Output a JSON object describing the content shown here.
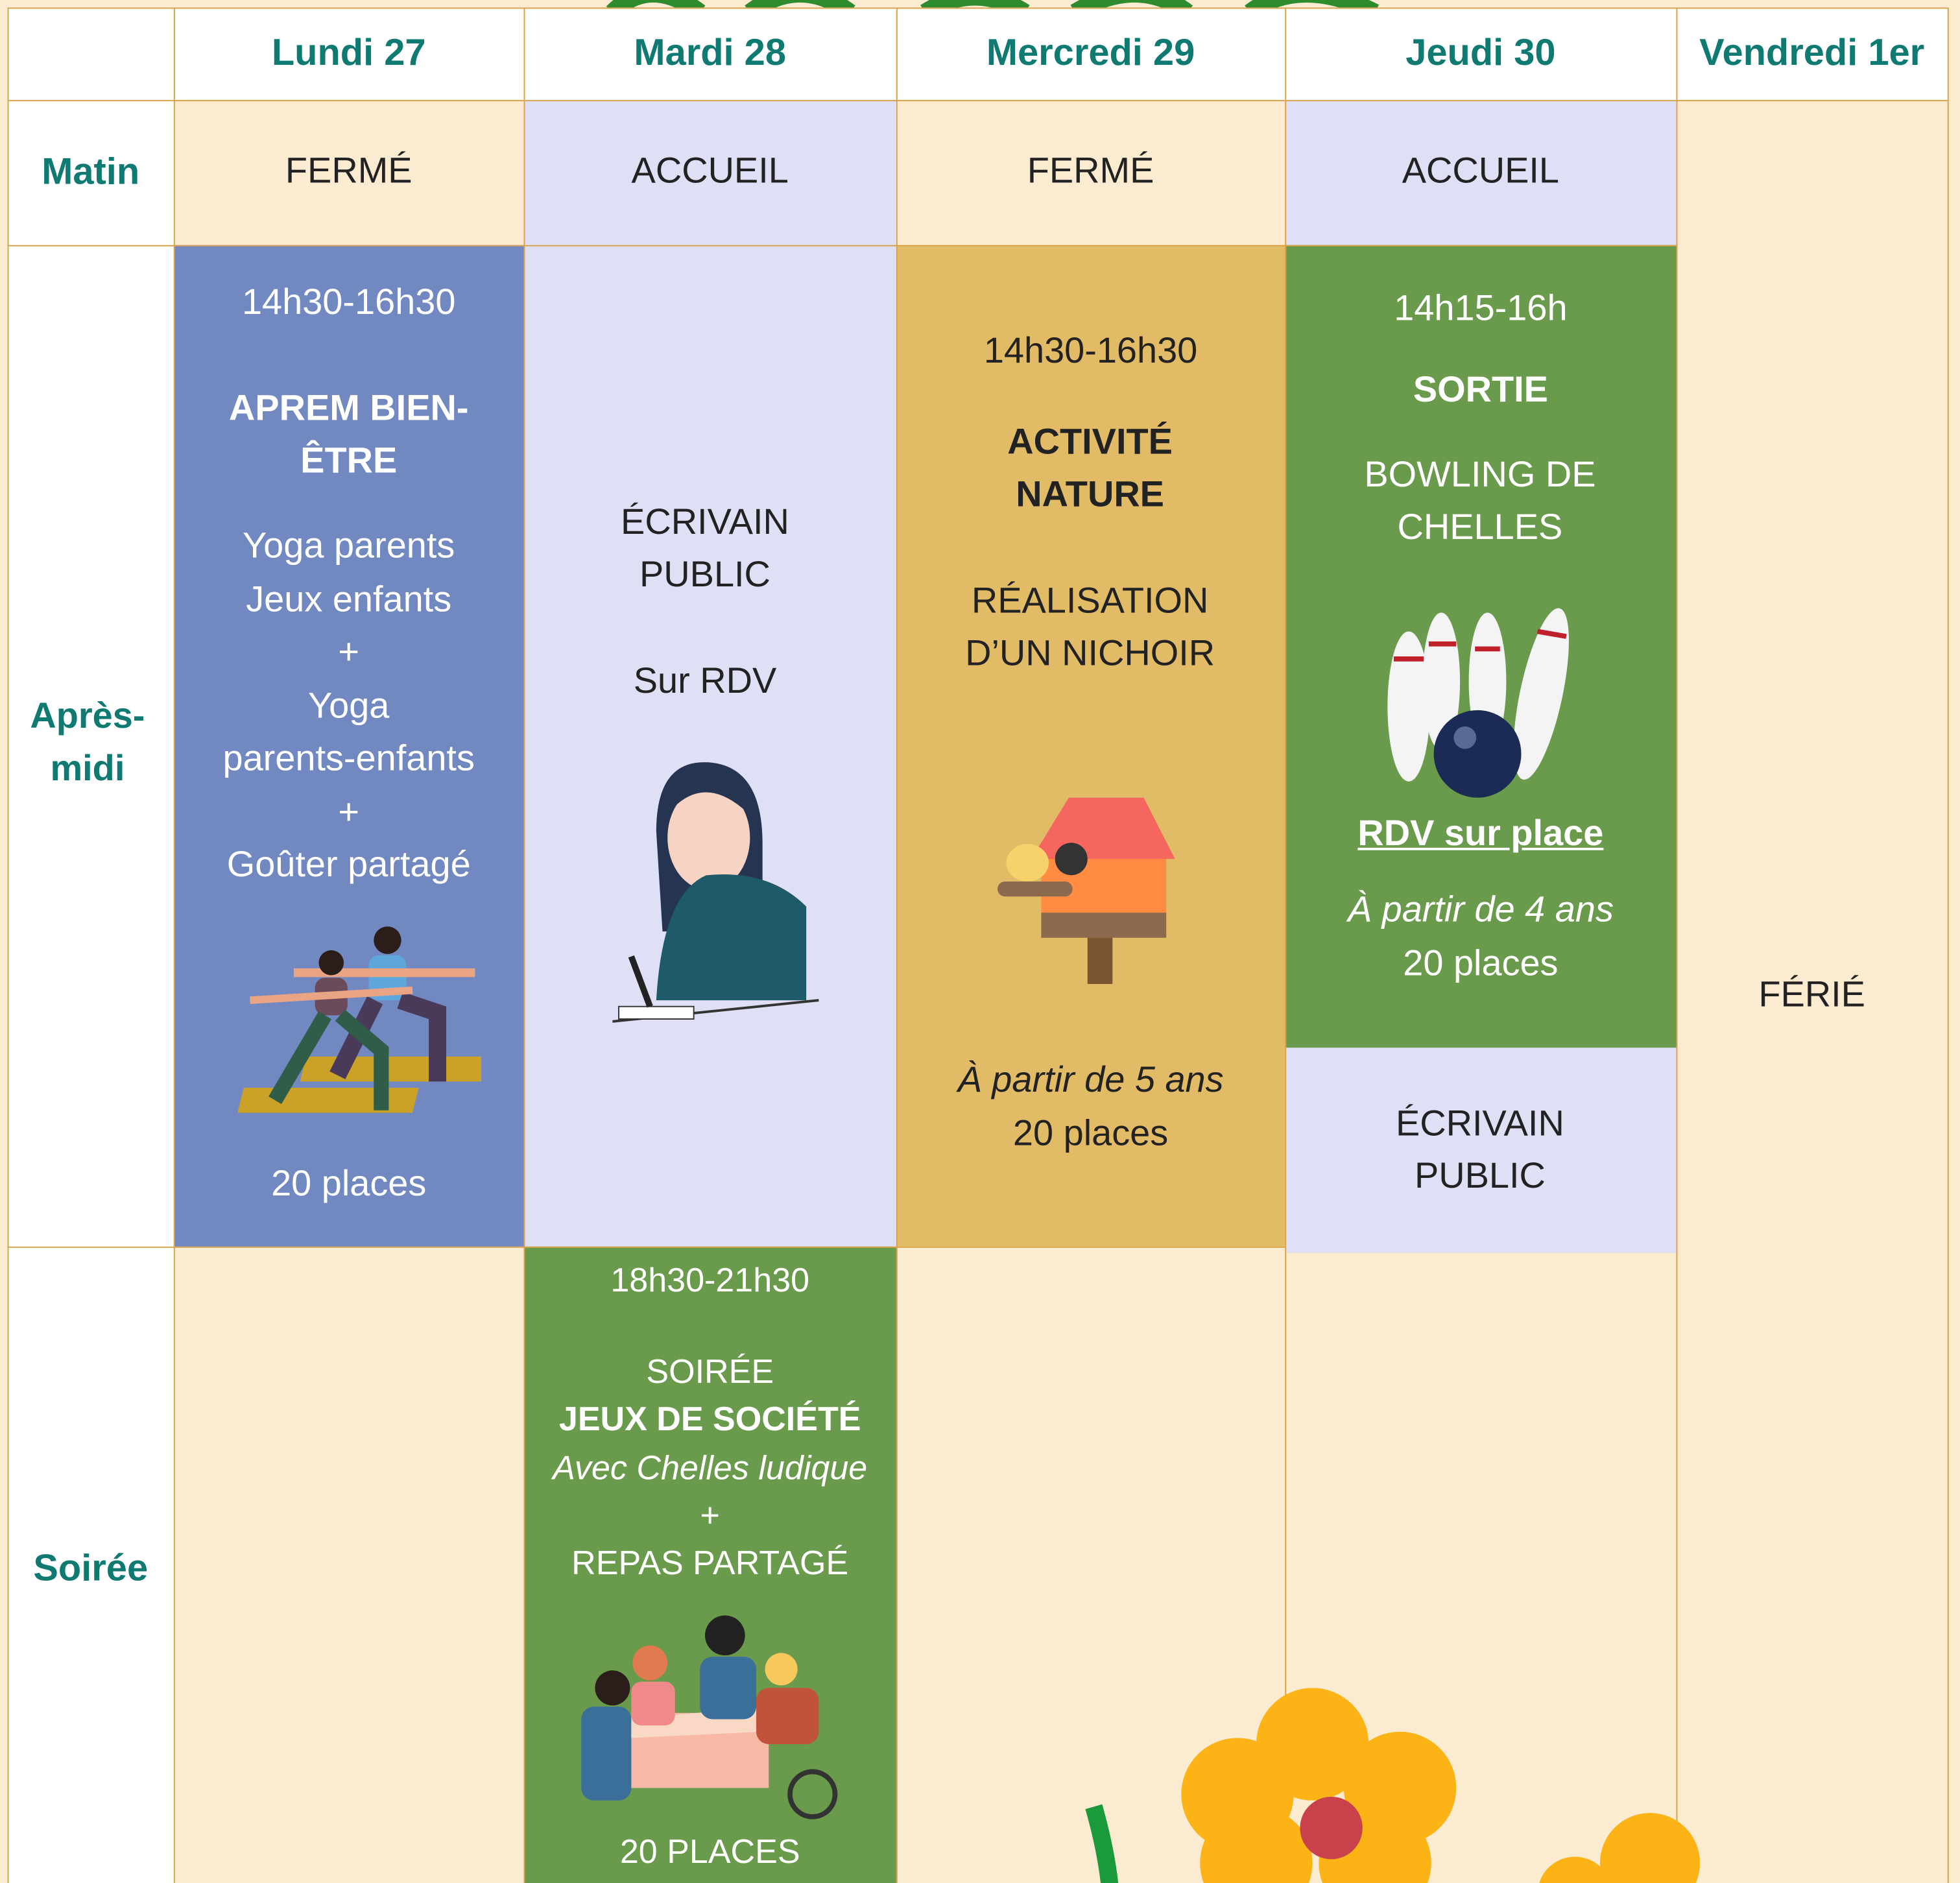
{
  "header": {
    "days": [
      "Lundi 27",
      "Mardi 28",
      "Mercredi 29",
      "Jeudi 30",
      "Vendredi 1er"
    ]
  },
  "rows": {
    "labels": [
      "Matin",
      "Après-midi",
      "Soirée"
    ]
  },
  "matin": [
    "FERMÉ",
    "ACCUEIL",
    "FERMÉ",
    "ACCUEIL"
  ],
  "vendredi": "FÉRIÉ",
  "lundi": {
    "time": "14h30-16h30",
    "title": "APREM BIEN-ÊTRE",
    "lines": [
      "Yoga parents",
      "Jeux enfants",
      "+",
      "Yoga",
      "parents-enfants",
      "+",
      "Goûter partagé"
    ],
    "places": "20 places"
  },
  "mardi": {
    "title": "ÉCRIVAIN PUBLIC",
    "note": "Sur RDV"
  },
  "mercredi": {
    "time": "14h30-16h30",
    "title": "ACTIVITÉ NATURE",
    "desc": "RÉALISATION D’UN NICHOIR",
    "age": "À partir de 5 ans",
    "places": "20 places"
  },
  "jeudi": {
    "time": "14h15-16h",
    "title": "SORTIE",
    "place": "BOWLING DE CHELLES",
    "rdv": "RDV sur place",
    "age": "À partir de 4 ans",
    "places": "20 places",
    "second": "ÉCRIVAIN PUBLIC"
  },
  "soiree": {
    "time": "18h30-21h30",
    "kind": "SOIRÉE",
    "title": "JEUX DE SOCIÉTÉ",
    "partner": "Avec Chelles ludique",
    "plus": "+",
    "meal": "REPAS PARTAGÉ",
    "places": "20 PLACES"
  }
}
